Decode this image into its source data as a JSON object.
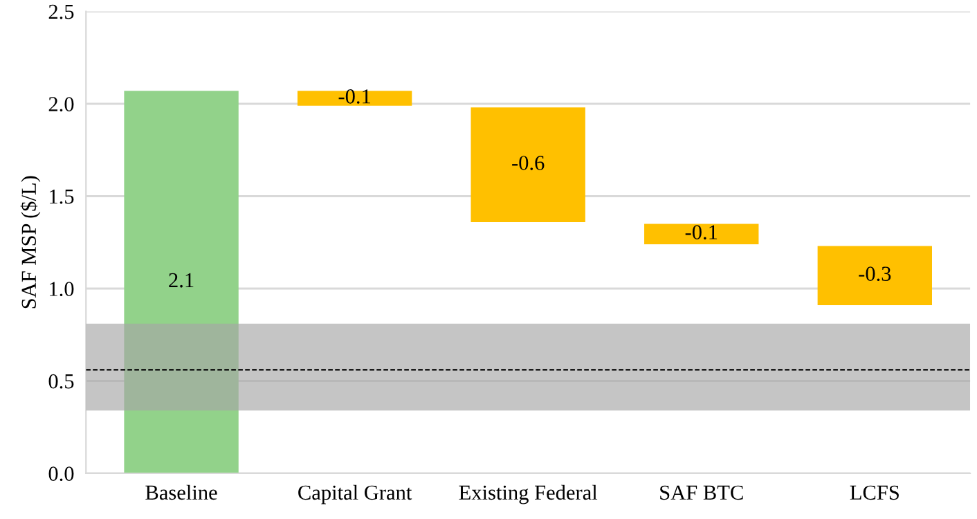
{
  "chart_data": {
    "type": "bar",
    "ylabel": "SAF MSP ($/L)",
    "categories": [
      "Baseline",
      "Capital Grant",
      "Existing Federal",
      "SAF BTC",
      "LCFS"
    ],
    "values": [
      2.07,
      -0.08,
      -0.62,
      -0.11,
      -0.32
    ],
    "base": [
      0,
      2.07,
      1.98,
      1.35,
      1.23
    ],
    "colors": [
      "#92d28a",
      "#ffc000",
      "#ffc000",
      "#ffc000",
      "#ffc000"
    ],
    "value_labels": [
      "2.1",
      "-0.1",
      "-0.6",
      "-0.1",
      "-0.3"
    ],
    "ylim": [
      0,
      2.5
    ],
    "yticks": [
      {
        "value": 0,
        "label": "0.0"
      },
      {
        "value": 0.5,
        "label": "0.5"
      },
      {
        "value": 1,
        "label": "1.0"
      },
      {
        "value": 1.5,
        "label": "1.5"
      },
      {
        "value": 2,
        "label": "2.0"
      },
      {
        "value": 2.5,
        "label": "2.5"
      }
    ],
    "grid": "y",
    "ref_lines": [
      {
        "axis": "y",
        "value": 0.56,
        "color": "#000000",
        "line_style": "dashed"
      }
    ],
    "bands": [
      {
        "axis": "y",
        "from": 0.34,
        "to": 0.81,
        "color": "#a6a6a6"
      }
    ]
  }
}
